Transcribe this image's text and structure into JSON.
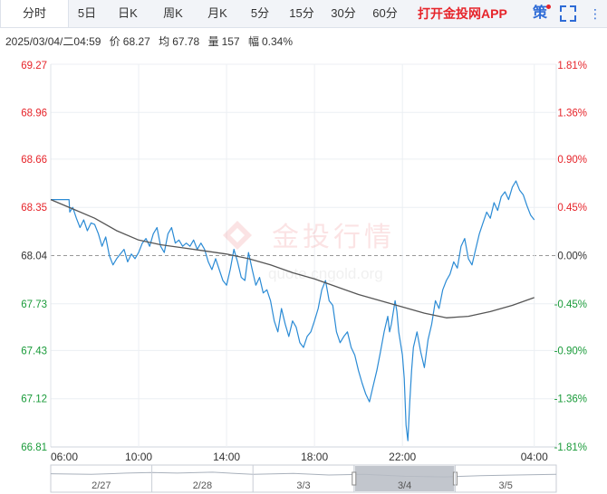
{
  "tabs": [
    {
      "label": "分时",
      "active": true
    },
    {
      "label": "5日",
      "active": false
    },
    {
      "label": "日K",
      "active": false
    },
    {
      "label": "周K",
      "active": false
    },
    {
      "label": "月K",
      "active": false
    },
    {
      "label": "5分",
      "active": false
    },
    {
      "label": "15分",
      "active": false
    },
    {
      "label": "30分",
      "active": false
    },
    {
      "label": "60分",
      "active": false
    }
  ],
  "promo_label": "打开金投网APP",
  "strategy_label": "策",
  "info": {
    "datetime": "2025/03/04/二04:59",
    "price_label": "价",
    "price": "68.27",
    "avg_label": "均",
    "avg": "67.78",
    "volume_label": "量",
    "volume": "157",
    "amplitude_label": "幅",
    "amplitude": "0.34%"
  },
  "watermark": {
    "cn": "金投行情",
    "url": "quote.cngold.org"
  },
  "colors": {
    "price_line": "#2b8bd5",
    "avg_line": "#555555",
    "up": "#e6242a",
    "down": "#1a9b3a",
    "neutral": "#333333"
  },
  "chart_data": {
    "type": "line",
    "prev_close": 68.04,
    "ylim": [
      66.81,
      69.27
    ],
    "y_ticks": [
      {
        "price": "69.27",
        "pct": "1.81%",
        "value": 69.27
      },
      {
        "price": "68.96",
        "pct": "1.36%",
        "value": 68.96
      },
      {
        "price": "68.66",
        "pct": "0.90%",
        "value": 68.66
      },
      {
        "price": "68.35",
        "pct": "0.45%",
        "value": 68.35
      },
      {
        "price": "68.04",
        "pct": "0.00%",
        "value": 68.04
      },
      {
        "price": "67.73",
        "pct": "-0.45%",
        "value": 67.73
      },
      {
        "price": "67.43",
        "pct": "-0.90%",
        "value": 67.43
      },
      {
        "price": "67.12",
        "pct": "-1.36%",
        "value": 67.12
      },
      {
        "price": "66.81",
        "pct": "-1.81%",
        "value": 66.81
      }
    ],
    "x_ticks": [
      {
        "label": "06:00",
        "t": 0
      },
      {
        "label": "10:00",
        "t": 240
      },
      {
        "label": "14:00",
        "t": 480
      },
      {
        "label": "18:00",
        "t": 720
      },
      {
        "label": "22:00",
        "t": 960
      },
      {
        "label": "04:00",
        "t": 1320
      }
    ],
    "t_max": 1380,
    "series": [
      {
        "role": "price",
        "points": [
          [
            0,
            68.4
          ],
          [
            30,
            68.4
          ],
          [
            50,
            68.4
          ],
          [
            52,
            68.32
          ],
          [
            60,
            68.35
          ],
          [
            70,
            68.28
          ],
          [
            80,
            68.22
          ],
          [
            90,
            68.27
          ],
          [
            100,
            68.2
          ],
          [
            110,
            68.25
          ],
          [
            120,
            68.24
          ],
          [
            130,
            68.18
          ],
          [
            140,
            68.1
          ],
          [
            150,
            68.16
          ],
          [
            160,
            68.04
          ],
          [
            170,
            67.98
          ],
          [
            180,
            68.02
          ],
          [
            190,
            68.05
          ],
          [
            200,
            68.08
          ],
          [
            210,
            68.0
          ],
          [
            220,
            68.05
          ],
          [
            230,
            68.02
          ],
          [
            240,
            68.06
          ],
          [
            250,
            68.12
          ],
          [
            260,
            68.15
          ],
          [
            270,
            68.1
          ],
          [
            280,
            68.18
          ],
          [
            290,
            68.22
          ],
          [
            300,
            68.1
          ],
          [
            310,
            68.06
          ],
          [
            320,
            68.18
          ],
          [
            330,
            68.22
          ],
          [
            340,
            68.12
          ],
          [
            350,
            68.14
          ],
          [
            360,
            68.1
          ],
          [
            370,
            68.12
          ],
          [
            380,
            68.1
          ],
          [
            390,
            68.14
          ],
          [
            400,
            68.08
          ],
          [
            410,
            68.12
          ],
          [
            420,
            68.08
          ],
          [
            430,
            68.0
          ],
          [
            440,
            67.95
          ],
          [
            450,
            68.02
          ],
          [
            460,
            67.95
          ],
          [
            470,
            67.88
          ],
          [
            480,
            67.85
          ],
          [
            490,
            67.95
          ],
          [
            500,
            68.08
          ],
          [
            510,
            68.0
          ],
          [
            520,
            67.9
          ],
          [
            530,
            67.88
          ],
          [
            540,
            68.06
          ],
          [
            550,
            67.95
          ],
          [
            560,
            67.85
          ],
          [
            570,
            67.9
          ],
          [
            580,
            67.8
          ],
          [
            590,
            67.82
          ],
          [
            600,
            67.75
          ],
          [
            610,
            67.62
          ],
          [
            620,
            67.55
          ],
          [
            630,
            67.7
          ],
          [
            640,
            67.6
          ],
          [
            650,
            67.52
          ],
          [
            660,
            67.62
          ],
          [
            670,
            67.58
          ],
          [
            680,
            67.48
          ],
          [
            690,
            67.45
          ],
          [
            700,
            67.52
          ],
          [
            710,
            67.55
          ],
          [
            720,
            67.62
          ],
          [
            730,
            67.7
          ],
          [
            740,
            67.82
          ],
          [
            750,
            67.88
          ],
          [
            760,
            67.75
          ],
          [
            770,
            67.72
          ],
          [
            780,
            67.55
          ],
          [
            790,
            67.48
          ],
          [
            800,
            67.52
          ],
          [
            810,
            67.55
          ],
          [
            820,
            67.45
          ],
          [
            830,
            67.4
          ],
          [
            840,
            67.3
          ],
          [
            850,
            67.22
          ],
          [
            860,
            67.15
          ],
          [
            870,
            67.1
          ],
          [
            880,
            67.2
          ],
          [
            890,
            67.3
          ],
          [
            900,
            67.42
          ],
          [
            910,
            67.55
          ],
          [
            920,
            67.65
          ],
          [
            925,
            67.55
          ],
          [
            930,
            67.6
          ],
          [
            940,
            67.75
          ],
          [
            945,
            67.68
          ],
          [
            950,
            67.55
          ],
          [
            960,
            67.4
          ],
          [
            965,
            67.25
          ],
          [
            970,
            66.95
          ],
          [
            975,
            66.85
          ],
          [
            980,
            67.1
          ],
          [
            985,
            67.3
          ],
          [
            990,
            67.45
          ],
          [
            1000,
            67.55
          ],
          [
            1010,
            67.42
          ],
          [
            1020,
            67.32
          ],
          [
            1030,
            67.5
          ],
          [
            1040,
            67.6
          ],
          [
            1050,
            67.75
          ],
          [
            1060,
            67.7
          ],
          [
            1070,
            67.82
          ],
          [
            1080,
            67.88
          ],
          [
            1090,
            67.92
          ],
          [
            1100,
            68.0
          ],
          [
            1110,
            67.96
          ],
          [
            1120,
            68.1
          ],
          [
            1130,
            68.15
          ],
          [
            1140,
            68.02
          ],
          [
            1150,
            67.98
          ],
          [
            1160,
            68.08
          ],
          [
            1170,
            68.18
          ],
          [
            1180,
            68.25
          ],
          [
            1190,
            68.32
          ],
          [
            1200,
            68.28
          ],
          [
            1210,
            68.38
          ],
          [
            1220,
            68.33
          ],
          [
            1230,
            68.42
          ],
          [
            1240,
            68.45
          ],
          [
            1250,
            68.4
          ],
          [
            1260,
            68.48
          ],
          [
            1270,
            68.52
          ],
          [
            1280,
            68.46
          ],
          [
            1290,
            68.43
          ],
          [
            1300,
            68.36
          ],
          [
            1310,
            68.3
          ],
          [
            1320,
            68.27
          ]
        ]
      },
      {
        "role": "average",
        "points": [
          [
            0,
            68.4
          ],
          [
            60,
            68.34
          ],
          [
            120,
            68.28
          ],
          [
            180,
            68.2
          ],
          [
            240,
            68.14
          ],
          [
            300,
            68.11
          ],
          [
            360,
            68.09
          ],
          [
            420,
            68.07
          ],
          [
            480,
            68.05
          ],
          [
            540,
            68.02
          ],
          [
            600,
            67.98
          ],
          [
            660,
            67.93
          ],
          [
            720,
            67.89
          ],
          [
            780,
            67.84
          ],
          [
            840,
            67.79
          ],
          [
            900,
            67.75
          ],
          [
            960,
            67.71
          ],
          [
            1020,
            67.67
          ],
          [
            1080,
            67.64
          ],
          [
            1140,
            67.65
          ],
          [
            1200,
            67.68
          ],
          [
            1260,
            67.72
          ],
          [
            1320,
            67.77
          ]
        ]
      }
    ],
    "nav_labels": [
      "2/27",
      "2/28",
      "3/3",
      "3/4",
      "3/5"
    ],
    "nav_selected": "3/4"
  }
}
